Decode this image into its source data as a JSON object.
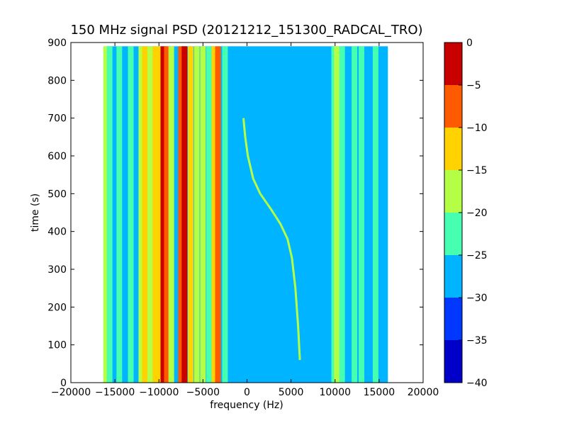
{
  "chart_data": {
    "type": "heatmap",
    "title": "150 MHz signal PSD (20121212_151300_RADCAL_TRO)",
    "xlabel": "frequency (Hz)",
    "ylabel": "time (s)",
    "xlim": [
      -20000,
      20000
    ],
    "ylim": [
      0,
      900
    ],
    "xticks": [
      -20000,
      -15000,
      -10000,
      -5000,
      0,
      5000,
      10000,
      15000,
      20000
    ],
    "xtick_labels": [
      "−20000",
      "−15000",
      "−10000",
      "−5000",
      "0",
      "5000",
      "10000",
      "15000",
      "20000"
    ],
    "yticks": [
      0,
      100,
      200,
      300,
      400,
      500,
      600,
      700,
      800,
      900
    ],
    "ytick_labels": [
      "0",
      "100",
      "200",
      "300",
      "400",
      "500",
      "600",
      "700",
      "800",
      "900"
    ],
    "data_extent": {
      "freq": [
        -16000,
        16000
      ],
      "time": [
        0,
        890
      ]
    },
    "colorbar": {
      "range": [
        -40,
        0
      ],
      "ticks": [
        0,
        -5,
        -10,
        -15,
        -20,
        -25,
        -30,
        -35,
        -40
      ],
      "tick_labels": [
        "0",
        "−5",
        "−10",
        "−15",
        "−20",
        "−25",
        "−30",
        "−35",
        "−40"
      ],
      "levels": [
        {
          "from": -40,
          "to": -35,
          "color": "#0000c8"
        },
        {
          "from": -35,
          "to": -30,
          "color": "#0038ff"
        },
        {
          "from": -30,
          "to": -25,
          "color": "#00b4ff"
        },
        {
          "from": -25,
          "to": -20,
          "color": "#46ffb0"
        },
        {
          "from": -20,
          "to": -15,
          "color": "#b4ff46"
        },
        {
          "from": -15,
          "to": -10,
          "color": "#ffd200"
        },
        {
          "from": -10,
          "to": -5,
          "color": "#ff5a00"
        },
        {
          "from": -5,
          "to": 0,
          "color": "#c80000"
        }
      ]
    },
    "background_level_db": -27,
    "vertical_lines": [
      {
        "freq": -16000,
        "level_db": -20
      },
      {
        "freq": -15600,
        "level_db": -22
      },
      {
        "freq": -14500,
        "level_db": -22
      },
      {
        "freq": -13200,
        "level_db": -22
      },
      {
        "freq": -12000,
        "level_db": -17
      },
      {
        "freq": -11600,
        "level_db": -12
      },
      {
        "freq": -11000,
        "level_db": -17
      },
      {
        "freq": -10400,
        "level_db": -12
      },
      {
        "freq": -9800,
        "level_db": -12
      },
      {
        "freq": -9500,
        "level_db": -3
      },
      {
        "freq": -9100,
        "level_db": -8
      },
      {
        "freq": -8600,
        "level_db": -17
      },
      {
        "freq": -7500,
        "level_db": -6
      },
      {
        "freq": -7100,
        "level_db": -3
      },
      {
        "freq": -6400,
        "level_db": -12
      },
      {
        "freq": -5700,
        "level_db": -17
      },
      {
        "freq": -5000,
        "level_db": -17
      },
      {
        "freq": -4300,
        "level_db": -22
      },
      {
        "freq": -3700,
        "level_db": -12
      },
      {
        "freq": -3300,
        "level_db": -6
      },
      {
        "freq": -2500,
        "level_db": -22
      },
      {
        "freq": 9900,
        "level_db": -22
      },
      {
        "freq": 10200,
        "level_db": -17
      },
      {
        "freq": 10800,
        "level_db": -22
      },
      {
        "freq": 12200,
        "level_db": -22
      },
      {
        "freq": 13000,
        "level_db": -22
      },
      {
        "freq": 14600,
        "level_db": -22
      }
    ],
    "doppler_track": {
      "level_db": -17,
      "points": [
        {
          "time": 60,
          "freq": 6000
        },
        {
          "time": 150,
          "freq": 5800
        },
        {
          "time": 250,
          "freq": 5500
        },
        {
          "time": 330,
          "freq": 5100
        },
        {
          "time": 380,
          "freq": 4600
        },
        {
          "time": 420,
          "freq": 3800
        },
        {
          "time": 460,
          "freq": 2700
        },
        {
          "time": 500,
          "freq": 1500
        },
        {
          "time": 540,
          "freq": 700
        },
        {
          "time": 600,
          "freq": 100
        },
        {
          "time": 650,
          "freq": -200
        },
        {
          "time": 700,
          "freq": -400
        }
      ]
    }
  }
}
